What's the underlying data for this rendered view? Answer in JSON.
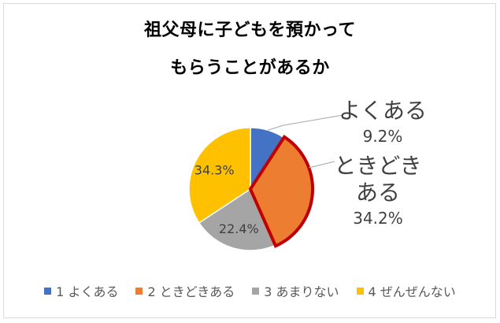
{
  "chart_data": {
    "type": "pie",
    "title_lines": [
      "祖父母に子どもを預かって",
      "もらうことがあるか"
    ],
    "slices": [
      {
        "label": "1 よくある",
        "value": 9.2,
        "value_label": "9.2%",
        "color": "#4472c4"
      },
      {
        "label": "2 ときどきある",
        "value": 34.2,
        "value_label": "34.2%",
        "color": "#ed7d31"
      },
      {
        "label": "3 あまりない",
        "value": 22.4,
        "value_label": "22.4%",
        "color": "#a5a5a5"
      },
      {
        "label": "4 ぜんぜんない",
        "value": 34.3,
        "value_label": "34.3%",
        "color": "#ffc000"
      }
    ],
    "callouts": [
      {
        "lines": [
          "よくある"
        ],
        "value": "9.2%"
      },
      {
        "lines": [
          "ときどき",
          "ある"
        ],
        "value": "34.2%"
      }
    ],
    "highlight_color": "#c00000",
    "legend_position": "bottom"
  }
}
